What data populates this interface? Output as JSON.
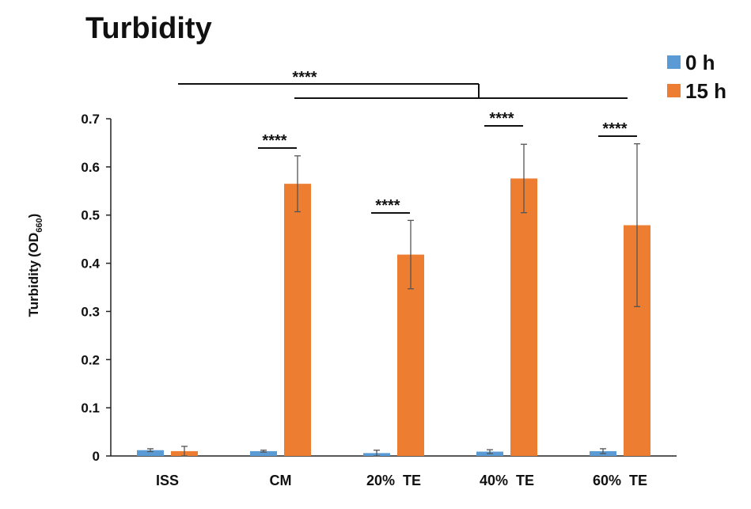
{
  "chart_data": {
    "type": "bar",
    "title": "Turbidity",
    "ylabel_main": "Turbidity",
    "ylabel_unit": "(OD",
    "ylabel_sub": "660",
    "ylabel_close": ")",
    "ylim": [
      0,
      0.7
    ],
    "yticks": [
      "0",
      "0.1",
      "0.2",
      "0.3",
      "0.4",
      "0.5",
      "0.6",
      "0.7"
    ],
    "categories": [
      "ISS",
      "CM",
      "20%  TE",
      "40%  TE",
      "60%  TE"
    ],
    "series": [
      {
        "name": "0 h",
        "color": "#5b9bd5",
        "values": [
          0.012,
          0.01,
          0.006,
          0.009,
          0.01
        ],
        "errors": [
          0.003,
          0.002,
          0.006,
          0.004,
          0.005
        ]
      },
      {
        "name": "15 h",
        "color": "#ed7d31",
        "values": [
          0.01,
          0.565,
          0.418,
          0.576,
          0.479
        ],
        "errors": [
          0.01,
          0.058,
          0.071,
          0.071,
          0.169
        ]
      }
    ],
    "significance": [
      {
        "label": "****",
        "category": 1
      },
      {
        "label": "****",
        "category": 2
      },
      {
        "label": "****",
        "category": 3
      },
      {
        "label": "****",
        "category": 4
      },
      {
        "label": "****",
        "category": "ISS vs TE groups"
      }
    ],
    "legend_position": "top-right",
    "grid": false
  }
}
